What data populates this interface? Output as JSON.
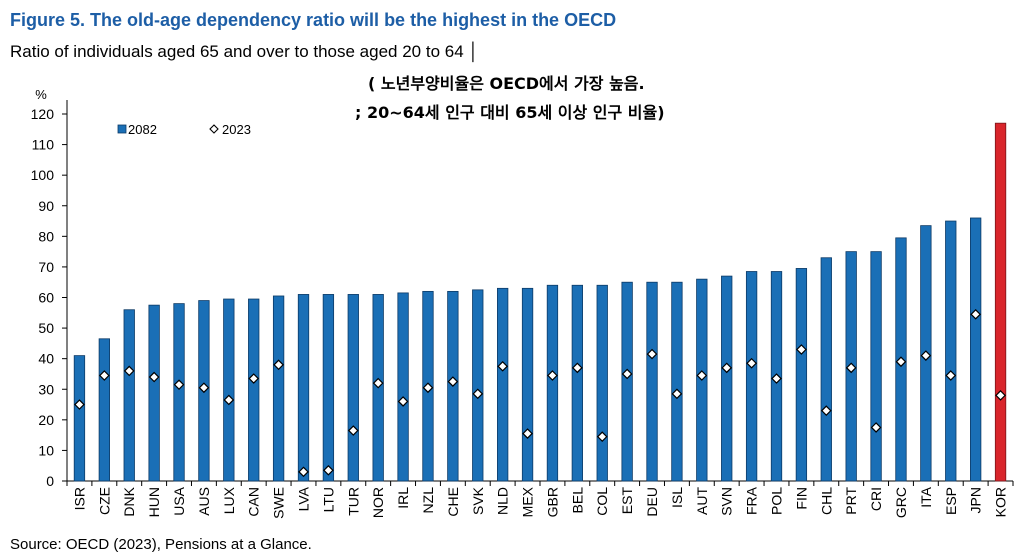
{
  "chart_data": {
    "type": "bar",
    "title": "Figure 5. The old-age dependency ratio will be the highest in the OECD",
    "subtitle": "Ratio of individuals aged 65 and over to those aged 20 to 64 │",
    "ylabel": "%",
    "ylim": [
      0,
      120
    ],
    "yticks": [
      0,
      10,
      20,
      30,
      40,
      50,
      60,
      70,
      80,
      90,
      100,
      110,
      120
    ],
    "grid": false,
    "legend": "top-left",
    "categories": [
      "ISR",
      "CZE",
      "DNK",
      "HUN",
      "USA",
      "AUS",
      "LUX",
      "CAN",
      "SWE",
      "LVA",
      "LTU",
      "TUR",
      "NOR",
      "IRL",
      "NZL",
      "CHE",
      "SVK",
      "NLD",
      "MEX",
      "GBR",
      "BEL",
      "COL",
      "EST",
      "DEU",
      "ISL",
      "AUT",
      "SVN",
      "FRA",
      "POL",
      "FIN",
      "CHL",
      "PRT",
      "CRI",
      "GRC",
      "ITA",
      "ESP",
      "JPN",
      "KOR"
    ],
    "series": [
      {
        "name": "2082",
        "type": "bar",
        "color": "#1a6fb6",
        "edge": "#0c3a66",
        "values": [
          41,
          46.5,
          56,
          57.5,
          58,
          59,
          59.5,
          59.5,
          60.5,
          61,
          61,
          61,
          61,
          61.5,
          62,
          62,
          62.5,
          63,
          63,
          64,
          64,
          64,
          65,
          65,
          65,
          66,
          67,
          68.5,
          68.5,
          69.5,
          73,
          75,
          75,
          79.5,
          83.5,
          85,
          86,
          117
        ]
      },
      {
        "name": "2023",
        "type": "scatter",
        "marker": "diamond",
        "color": "#ffffff",
        "edge": "#000000",
        "values": [
          25,
          34.5,
          36,
          34,
          31.5,
          30.5,
          26.5,
          33.5,
          38,
          3,
          3.5,
          16.5,
          32,
          26,
          30.5,
          32.5,
          28.5,
          37.5,
          15.5,
          34.5,
          37,
          14.5,
          35,
          41.5,
          28.5,
          34.5,
          37,
          38.5,
          33.5,
          43,
          23,
          37,
          17.5,
          39,
          41,
          34.5,
          54.5,
          28
        ]
      }
    ],
    "highlight": {
      "KOR": {
        "color": "#d9252b",
        "edge": "#7a1419"
      }
    }
  },
  "annotation": {
    "line1": "( 노년부양비율은 OECD에서 가장 높음.",
    "line2": "; 20~64세 인구 대비 65세 이상 인구 비율)"
  },
  "source": "Source: OECD (2023), Pensions at a Glance.",
  "colors": {
    "title": "#1d5ea6"
  }
}
